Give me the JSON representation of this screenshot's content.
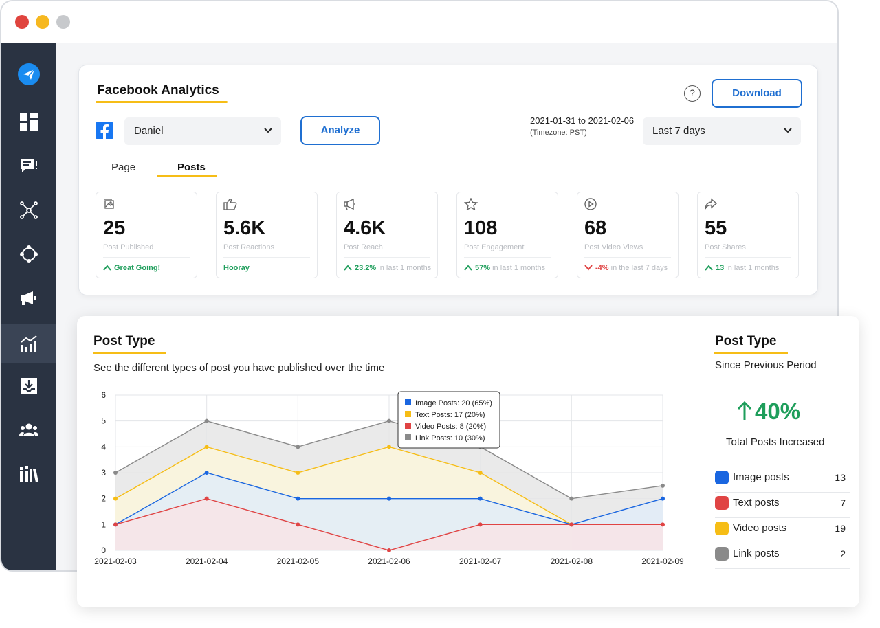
{
  "app": {
    "title": "Facebook Analytics",
    "help_label": "?",
    "download_label": "Download",
    "account_select": "Daniel",
    "analyze_label": "Analyze",
    "date_range": "2021-01-31 to 2021-02-06",
    "timezone": "(Timezone: PST)",
    "period_select": "Last 7 days",
    "tabs": [
      {
        "label": "Page",
        "active": false
      },
      {
        "label": "Posts",
        "active": true
      }
    ]
  },
  "sidebar": {
    "items": [
      {
        "icon": "paper-plane-icon",
        "active": false
      },
      {
        "icon": "dashboard-icon",
        "active": false
      },
      {
        "icon": "chat-icon",
        "active": false
      },
      {
        "icon": "network-icon",
        "active": false
      },
      {
        "icon": "nodes-icon",
        "active": false
      },
      {
        "icon": "megaphone-icon",
        "active": false
      },
      {
        "icon": "analytics-icon",
        "active": true
      },
      {
        "icon": "download-tray-icon",
        "active": false
      },
      {
        "icon": "users-icon",
        "active": false
      },
      {
        "icon": "library-icon",
        "active": false
      }
    ]
  },
  "stats": [
    {
      "icon": "image-icon",
      "value": "25",
      "label": "Post Published",
      "trend": "up",
      "highlight": "Great Going!",
      "rest": ""
    },
    {
      "icon": "thumbs-up-icon",
      "value": "5.6K",
      "label": "Post Reactions",
      "trend": "none",
      "highlight": "Hooray",
      "rest": ""
    },
    {
      "icon": "megaphone-icon",
      "value": "4.6K",
      "label": "Post Reach",
      "trend": "up",
      "highlight": "23.2%",
      "rest": " in last 1 months"
    },
    {
      "icon": "star-icon",
      "value": "108",
      "label": "Post Engagement",
      "trend": "up",
      "highlight": "57%",
      "rest": " in last 1 months"
    },
    {
      "icon": "play-icon",
      "value": "68",
      "label": "Post Video Views",
      "trend": "down",
      "highlight": "-4%",
      "rest": " in the last 7 days"
    },
    {
      "icon": "share-icon",
      "value": "55",
      "label": "Post Shares",
      "trend": "up",
      "highlight": "13",
      "rest": " in last 1 months"
    }
  ],
  "post_type": {
    "title": "Post Type",
    "description": "See the different types of post you have published over the time",
    "tooltip": [
      {
        "label": "Image Posts: 20 (65%)",
        "color": "#1a66e0"
      },
      {
        "label": "Text Posts: 17 (20%)",
        "color": "#f6bd16"
      },
      {
        "label": "Video Posts: 8 (20%)",
        "color": "#e04444"
      },
      {
        "label": "Link Posts: 10 (30%)",
        "color": "#8a8a8a"
      }
    ]
  },
  "summary": {
    "title": "Post Type",
    "subtitle": "Since Previous Period",
    "percent": "40%",
    "percent_label": "Total Posts Increased",
    "legend": [
      {
        "name": "Image posts",
        "count": "13",
        "color": "#1a66e0"
      },
      {
        "name": "Text posts",
        "count": "7",
        "color": "#e04444"
      },
      {
        "name": "Video posts",
        "count": "19",
        "color": "#f6bd16"
      },
      {
        "name": "Link posts",
        "count": "2",
        "color": "#8a8a8a"
      }
    ]
  },
  "chart_data": {
    "type": "area",
    "title": "",
    "xlabel": "",
    "ylabel": "",
    "x": [
      "2021-02-03",
      "2021-02-04",
      "2021-02-05",
      "2021-02-06",
      "2021-02-07",
      "2021-02-08",
      "2021-02-09"
    ],
    "ylim": [
      0,
      6
    ],
    "yticks": [
      0,
      1,
      2,
      3,
      4,
      5,
      6
    ],
    "grid": true,
    "series": [
      {
        "values": [
          3,
          5,
          4,
          5,
          4,
          2,
          2.5
        ],
        "color": "#8a8a8a",
        "fill": "#e6e6e6"
      },
      {
        "values": [
          2,
          4,
          3,
          4,
          3,
          1,
          null
        ],
        "color": "#f6bd16",
        "fill": "#fbf6dc"
      },
      {
        "values": [
          1,
          3,
          2,
          2,
          2,
          1,
          2
        ],
        "color": "#1a66e0",
        "fill": "#e2ecf8"
      },
      {
        "values": [
          1,
          2,
          1,
          0,
          1,
          1,
          1
        ],
        "color": "#e04444",
        "fill": "#f8e4e6"
      }
    ]
  }
}
